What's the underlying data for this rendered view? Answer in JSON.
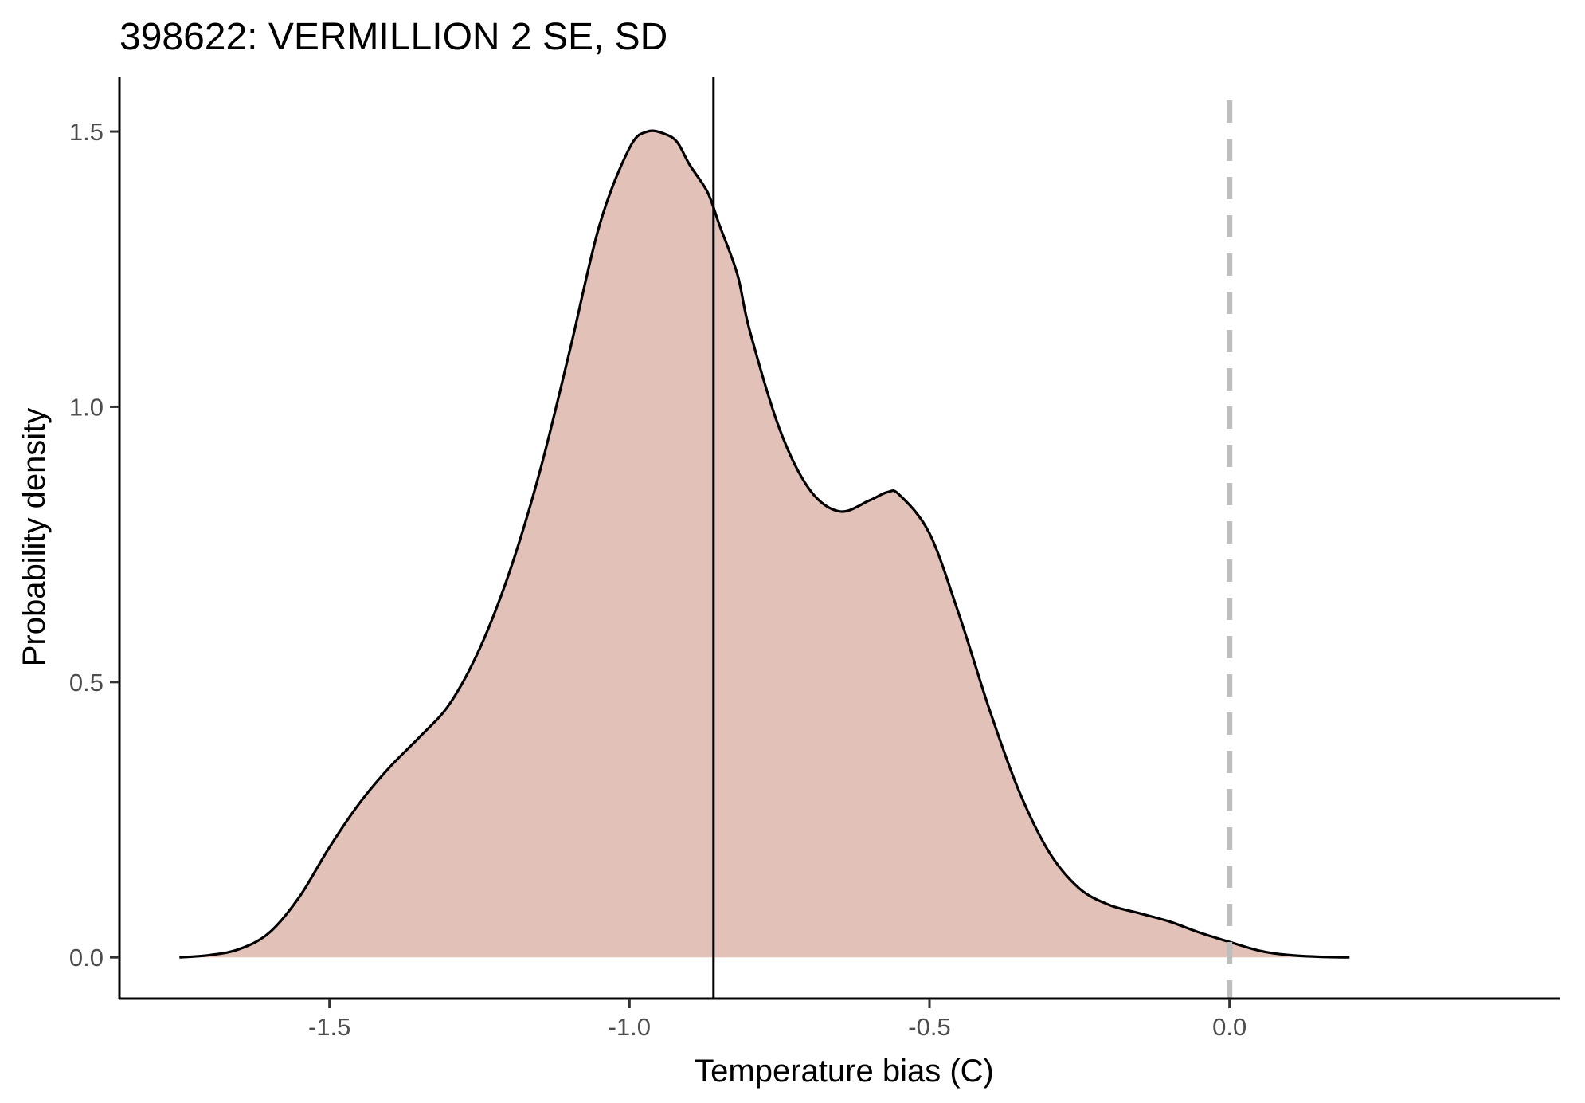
{
  "chart_data": {
    "type": "area",
    "title": "398622: VERMILLION 2 SE, SD",
    "xlabel": "Temperature bias (C)",
    "ylabel": "Probability density",
    "xlim": [
      -1.85,
      0.55
    ],
    "ylim": [
      -0.075,
      1.6
    ],
    "x_ticks": [
      -1.5,
      -1.0,
      -0.5,
      0.0
    ],
    "x_tick_labels": [
      "-1.5",
      "-1.0",
      "-0.5",
      "0.0"
    ],
    "y_ticks": [
      0.0,
      0.5,
      1.0,
      1.5
    ],
    "y_tick_labels": [
      "0.0",
      "0.5",
      "1.0",
      "1.5"
    ],
    "grid": false,
    "fill_color": "#e2c1b8",
    "line_color": "#000000",
    "reference_lines": [
      {
        "x": -0.86,
        "style": "solid",
        "color": "#000000"
      },
      {
        "x": 0.0,
        "style": "dashed",
        "color": "#bebebe"
      }
    ],
    "series": [
      {
        "x": [
          -1.75,
          -1.7,
          -1.65,
          -1.6,
          -1.55,
          -1.5,
          -1.45,
          -1.4,
          -1.35,
          -1.3,
          -1.25,
          -1.2,
          -1.15,
          -1.1,
          -1.05,
          -1.0,
          -0.97,
          -0.94,
          -0.92,
          -0.9,
          -0.87,
          -0.85,
          -0.82,
          -0.8,
          -0.75,
          -0.7,
          -0.65,
          -0.6,
          -0.57,
          -0.55,
          -0.5,
          -0.45,
          -0.4,
          -0.35,
          -0.3,
          -0.25,
          -0.2,
          -0.15,
          -0.1,
          -0.05,
          0.0,
          0.05,
          0.1,
          0.15,
          0.2
        ],
        "y": [
          0.0,
          0.004,
          0.015,
          0.045,
          0.11,
          0.2,
          0.28,
          0.345,
          0.4,
          0.46,
          0.56,
          0.7,
          0.88,
          1.1,
          1.33,
          1.47,
          1.5,
          1.495,
          1.48,
          1.44,
          1.39,
          1.33,
          1.24,
          1.14,
          0.96,
          0.85,
          0.81,
          0.83,
          0.845,
          0.84,
          0.77,
          0.62,
          0.45,
          0.3,
          0.19,
          0.125,
          0.095,
          0.08,
          0.065,
          0.045,
          0.028,
          0.012,
          0.004,
          0.001,
          0.0
        ]
      }
    ]
  }
}
